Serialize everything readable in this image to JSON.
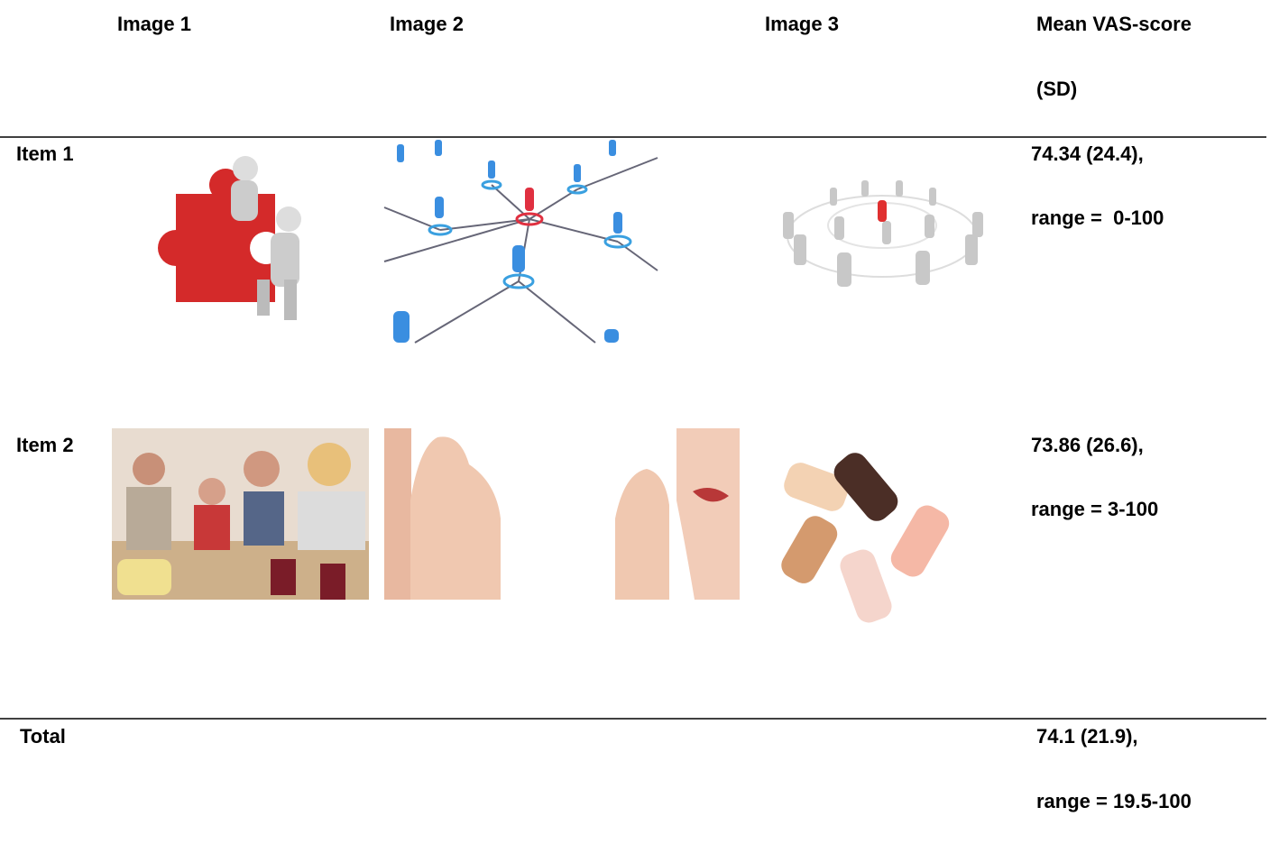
{
  "table": {
    "header": {
      "columns": [
        "Image 1",
        "Image 2",
        "Image 3"
      ],
      "score": [
        "Mean VAS-score",
        "(SD)"
      ]
    },
    "rows": [
      {
        "label": "Item 1",
        "score": [
          "74.34 (24.4),",
          "range =  0-100"
        ]
      },
      {
        "label": "Item 2",
        "score": [
          "73.86 (26.6),",
          "range = 3-100"
        ]
      },
      {
        "label": "Total",
        "score": [
          "74.1 (21.9),",
          "range = 19.5-100"
        ]
      }
    ]
  }
}
